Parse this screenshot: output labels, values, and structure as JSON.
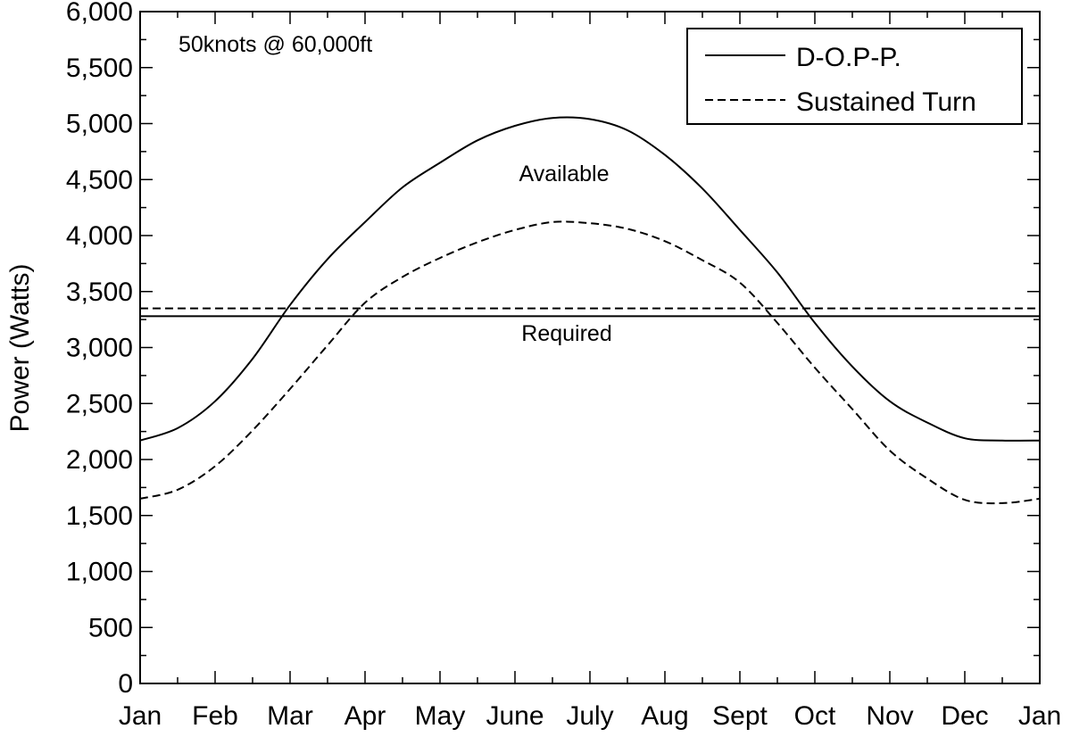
{
  "chart_data": {
    "type": "line",
    "title": "",
    "xlabel": "",
    "ylabel": "Power (Watts)",
    "ylim": [
      0,
      6000
    ],
    "y_ticks": [
      0,
      500,
      1000,
      1500,
      2000,
      2500,
      3000,
      3500,
      4000,
      4500,
      5000,
      5500,
      6000
    ],
    "y_tick_labels": [
      "0",
      "500",
      "1,000",
      "1,500",
      "2,000",
      "2,500",
      "3,000",
      "3,500",
      "4,000",
      "4,500",
      "5,000",
      "5,500",
      "6,000"
    ],
    "x_ticks": [
      0,
      1,
      2,
      3,
      4,
      5,
      6,
      7,
      8,
      9,
      10,
      11,
      12
    ],
    "x_tick_labels": [
      "Jan",
      "Feb",
      "Mar",
      "Apr",
      "May",
      "June",
      "July",
      "Aug",
      "Sept",
      "Oct",
      "Nov",
      "Dec",
      "Jan"
    ],
    "xlim": [
      0,
      12
    ],
    "grid": false,
    "legend_position": "top-right",
    "annotations": {
      "condition": "50knots @ 60,000ft",
      "available": "Available",
      "required": "Required"
    },
    "series": [
      {
        "name": "D-O.P-P.",
        "style": "solid",
        "x": [
          0,
          0.5,
          1,
          1.5,
          2,
          2.5,
          3,
          3.5,
          4,
          4.5,
          5,
          5.5,
          6,
          6.5,
          7,
          7.5,
          8,
          8.5,
          9,
          9.5,
          10,
          10.5,
          11,
          11.5,
          12
        ],
        "available": [
          2170,
          2280,
          2520,
          2900,
          3380,
          3790,
          4120,
          4430,
          4650,
          4850,
          4980,
          5050,
          5040,
          4940,
          4720,
          4420,
          4050,
          3670,
          3220,
          2830,
          2520,
          2330,
          2190,
          2170,
          2170
        ],
        "required": 3280
      },
      {
        "name": "Sustained Turn",
        "style": "dashed",
        "x": [
          0,
          0.5,
          1,
          1.5,
          2,
          2.5,
          3,
          3.5,
          4,
          4.5,
          5,
          5.5,
          6,
          6.5,
          7,
          7.5,
          8,
          8.5,
          9,
          9.5,
          10,
          10.5,
          11,
          11.5,
          12
        ],
        "available": [
          1650,
          1730,
          1940,
          2260,
          2630,
          3020,
          3400,
          3630,
          3800,
          3940,
          4050,
          4120,
          4110,
          4060,
          3950,
          3780,
          3580,
          3220,
          2820,
          2450,
          2080,
          1830,
          1640,
          1610,
          1650
        ],
        "required": 3350
      }
    ]
  }
}
